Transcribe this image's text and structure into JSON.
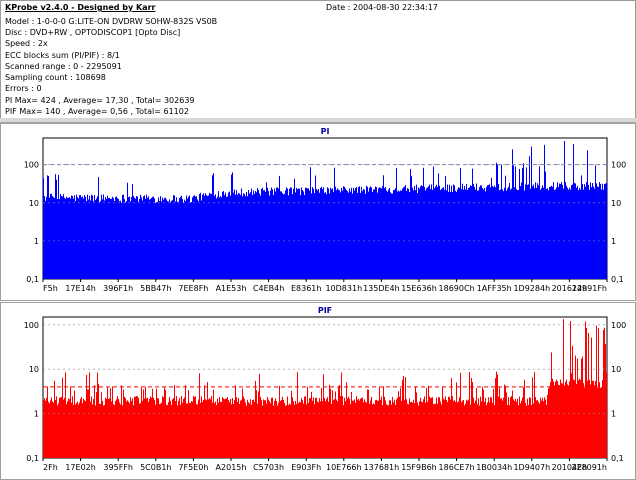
{
  "header": {
    "title": "KProbe v2.4.0 - Designed by Karr",
    "date": "Date : 2004-08-30 22:34:17",
    "lines": [
      "Model : 1-0-0-0 G:LITE-ON DVDRW SOHW-832S  VS0B",
      "Disc : DVD+RW , OPTODISCOP1 [Opto Disc]",
      "Speed : 2x",
      "ECC blocks sum (PI/PIF) : 8/1",
      "Scanned range : 0 - 2295091",
      "Sampling count : 108698",
      "Errors : 0",
      "PI Max= 424 , Average= 17,30 , Total= 302639",
      "PIF Max= 140 , Average= 0,56 , Total= 61102"
    ]
  },
  "chart_data": [
    {
      "type": "bar",
      "title": "PI",
      "y_scale": "log",
      "ylim": [
        0.1,
        500
      ],
      "y_ticks": [
        "100",
        "10",
        "1",
        "0,1"
      ],
      "y_tick_values": [
        100,
        10,
        1,
        0.1
      ],
      "x_range": [
        0,
        2295091
      ],
      "x_tick_labels": [
        "F5h",
        "17E14h",
        "396F1h",
        "5BB47h",
        "7EE8Fh",
        "A1E53h",
        "C4EB4h",
        "E8361h",
        "10D831h",
        "135DE4h",
        "15E636h",
        "18690Ch",
        "1AFF35h",
        "1D9284h",
        "201614h",
        "22991Fh"
      ],
      "color": "#0000ff",
      "threshold_line": 100,
      "profile": [
        {
          "x": 0,
          "base": 14
        },
        {
          "x": 600000,
          "base": 13
        },
        {
          "x": 750000,
          "base": 19
        },
        {
          "x": 1400000,
          "base": 23
        },
        {
          "x": 2000000,
          "base": 28
        },
        {
          "x": 2295091,
          "base": 29
        }
      ],
      "spike_max": 424
    },
    {
      "type": "bar",
      "title": "PIF",
      "y_scale": "log",
      "ylim": [
        0.1,
        150
      ],
      "y_ticks": [
        "100",
        "10",
        "1",
        "0,1"
      ],
      "y_tick_values": [
        100,
        10,
        1,
        0.1
      ],
      "x_range": [
        0,
        2295091
      ],
      "x_tick_labels": [
        "2Fh",
        "17E02h",
        "395FFh",
        "5C0B1h",
        "7F5E0h",
        "A2015h",
        "C5703h",
        "E903Fh",
        "10E766h",
        "137681h",
        "15F9B6h",
        "186CE7h",
        "1B0034h",
        "1D9407h",
        "20104Eh",
        "228091h"
      ],
      "color": "#ff0000",
      "threshold_line": 4,
      "profile": [
        {
          "x": 0,
          "base": 2
        },
        {
          "x": 2050000,
          "base": 2
        },
        {
          "x": 2060000,
          "base": 5
        },
        {
          "x": 2295091,
          "base": 5
        }
      ],
      "spike_max": 140
    }
  ]
}
